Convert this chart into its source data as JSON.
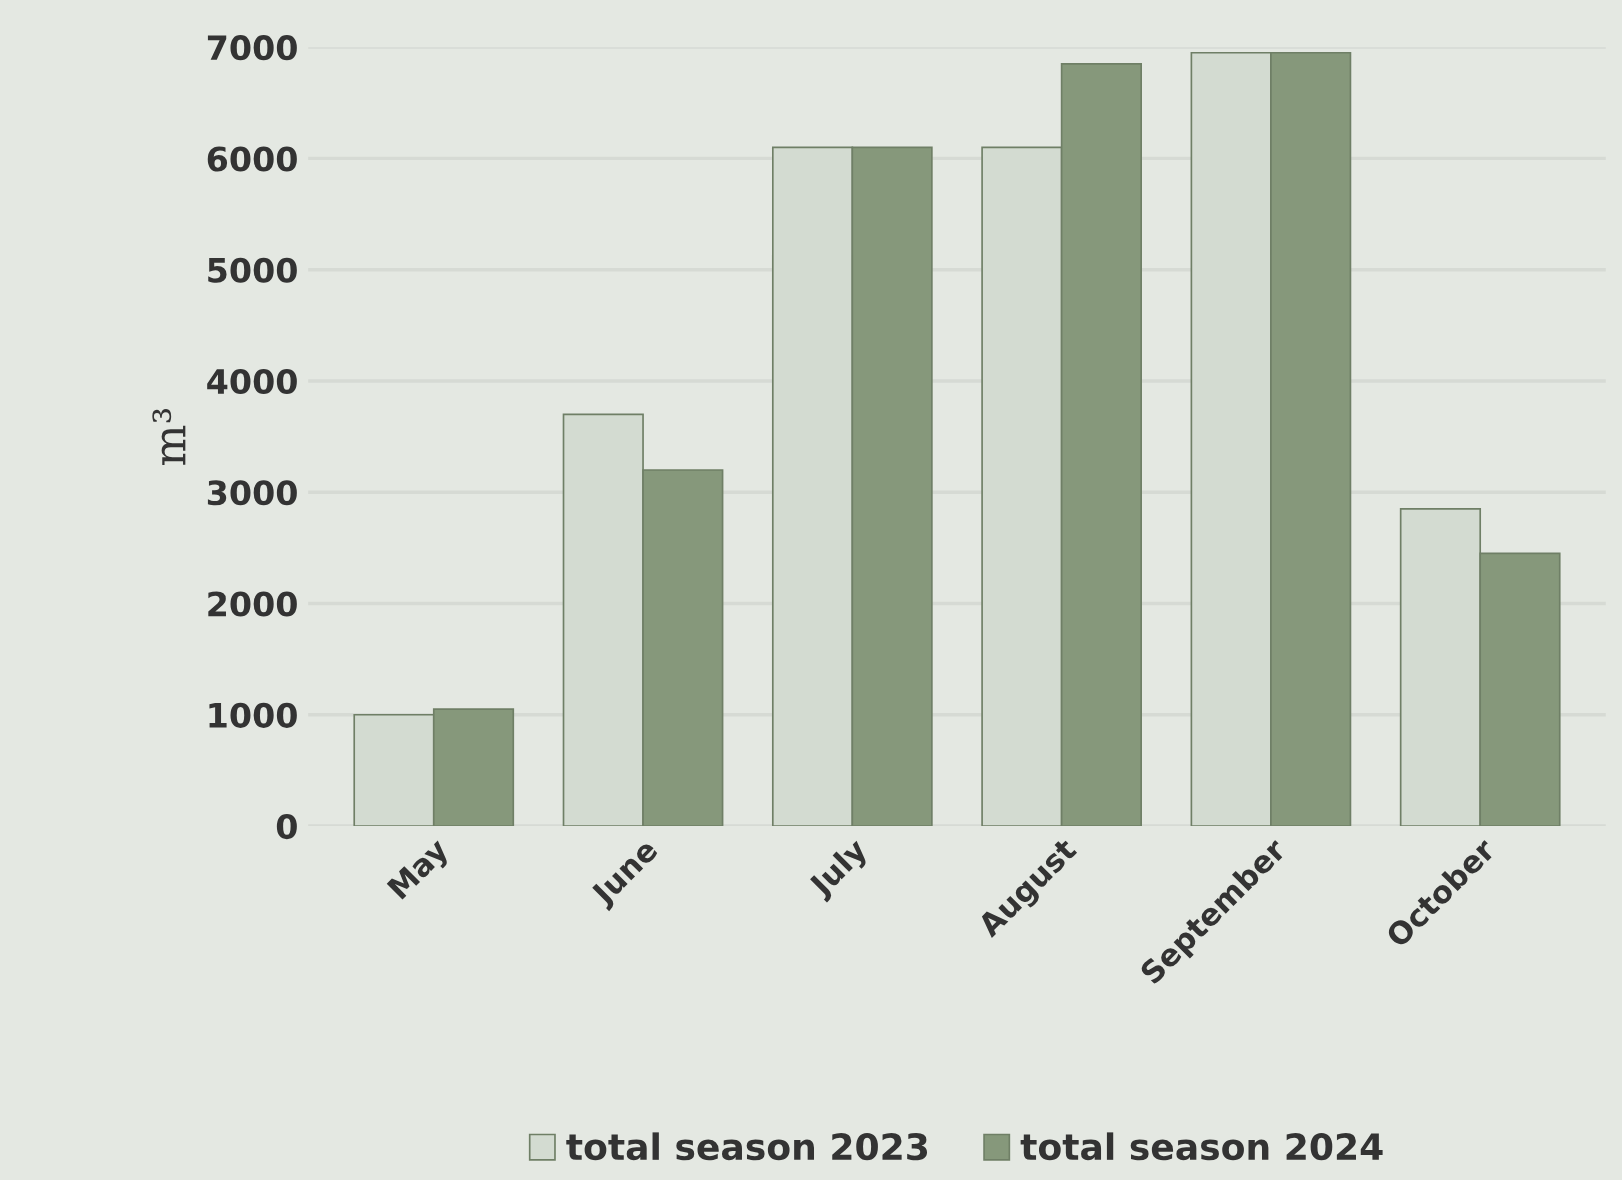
{
  "chart_data": {
    "type": "bar",
    "ylabel": "m³",
    "categories": [
      "May",
      "June",
      "July",
      "August",
      "September",
      "October"
    ],
    "series": [
      {
        "name": "total season 2023",
        "color": "#d3dbd1",
        "values": [
          1000,
          3700,
          6100,
          6100,
          6950,
          2850
        ]
      },
      {
        "name": "total season 2024",
        "color": "#86987b",
        "values": [
          1050,
          3200,
          6100,
          6850,
          6950,
          2450
        ]
      }
    ],
    "ylim": [
      0,
      7000
    ],
    "yticks": [
      0,
      1000,
      2000,
      3000,
      4000,
      5000,
      6000,
      7000
    ],
    "grid": "y",
    "legend": "bottom"
  }
}
